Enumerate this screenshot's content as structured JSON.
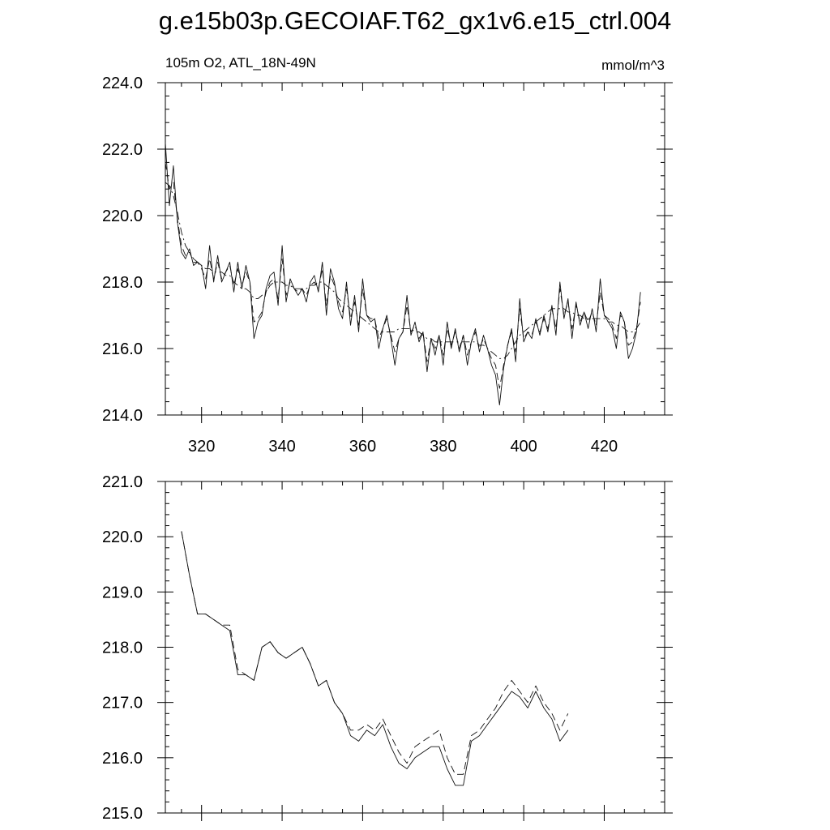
{
  "title": "g.e15b03p.GECOIAF.T62_gx1v6.e15_ctrl.004",
  "chart_data": [
    {
      "type": "line",
      "subtitle_left": "105m O2, ATL_18N-49N",
      "subtitle_right": "mmol/m^3",
      "xlim": [
        311,
        435
      ],
      "ylim": [
        214,
        224
      ],
      "xticks": [
        320,
        340,
        360,
        380,
        400,
        420
      ],
      "xtick_labels": [
        "320",
        "340",
        "360",
        "380",
        "400",
        "420"
      ],
      "yticks": [
        214,
        216,
        218,
        220,
        222,
        224
      ],
      "ytick_labels": [
        "214.0",
        "216.0",
        "218.0",
        "220.0",
        "222.0",
        "224.0"
      ],
      "x_start": 311,
      "series": [
        {
          "style": "solid",
          "values": [
            222.2,
            220.3,
            221.5,
            219.8,
            218.9,
            218.7,
            219.0,
            218.5,
            218.6,
            218.5,
            217.8,
            219.1,
            218.0,
            218.8,
            218.0,
            218.3,
            218.6,
            217.7,
            218.6,
            217.8,
            218.5,
            218.0,
            216.3,
            216.8,
            217.0,
            217.8,
            218.2,
            218.3,
            217.3,
            219.1,
            217.4,
            218.1,
            217.8,
            217.6,
            217.8,
            217.4,
            218.0,
            218.2,
            217.7,
            218.6,
            217.0,
            218.4,
            218.0,
            217.2,
            216.9,
            218.0,
            216.7,
            217.6,
            216.5,
            218.1,
            217.0,
            216.8,
            216.9,
            216.0,
            216.6,
            217.0,
            216.3,
            215.5,
            216.3,
            216.5,
            217.6,
            216.4,
            216.8,
            216.2,
            216.5,
            215.3,
            216.3,
            215.8,
            216.4,
            215.5,
            216.8,
            216.0,
            216.6,
            215.9,
            216.4,
            215.5,
            216.2,
            216.6,
            215.9,
            216.4,
            216.0,
            215.5,
            215.2,
            214.3,
            215.4,
            216.1,
            216.6,
            215.6,
            217.5,
            216.2,
            216.5,
            216.3,
            216.9,
            216.4,
            217.0,
            216.5,
            217.3,
            216.4,
            218.0,
            216.9,
            217.5,
            216.3,
            217.4,
            216.7,
            217.1,
            216.6,
            217.2,
            216.5,
            218.1,
            217.0,
            216.8,
            216.6,
            216.0,
            217.1,
            216.8,
            215.7,
            216.0,
            216.5,
            217.7
          ]
        },
        {
          "style": "dashed",
          "values": [
            221.6,
            220.8,
            221.0,
            219.9,
            219.1,
            218.8,
            218.9,
            218.6,
            218.6,
            218.4,
            218.1,
            218.7,
            218.1,
            218.6,
            218.1,
            218.3,
            218.5,
            217.9,
            218.4,
            217.9,
            218.3,
            218.0,
            216.8,
            216.9,
            217.1,
            217.7,
            218.0,
            218.1,
            217.5,
            218.7,
            217.6,
            218.0,
            217.8,
            217.7,
            217.8,
            217.6,
            217.9,
            218.0,
            217.8,
            218.4,
            217.3,
            218.2,
            217.9,
            217.4,
            217.1,
            217.8,
            216.9,
            217.4,
            216.7,
            217.8,
            217.0,
            216.9,
            216.9,
            216.3,
            216.6,
            216.9,
            216.4,
            215.9,
            216.3,
            216.5,
            217.3,
            216.5,
            216.7,
            216.3,
            216.5,
            215.6,
            216.3,
            216.0,
            216.4,
            215.8,
            216.6,
            216.1,
            216.5,
            216.0,
            216.4,
            215.8,
            216.2,
            216.5,
            216.0,
            216.3,
            216.0,
            215.7,
            215.5,
            214.8,
            215.5,
            216.1,
            216.5,
            215.9,
            217.2,
            216.3,
            216.5,
            216.4,
            216.8,
            216.5,
            216.9,
            216.6,
            217.2,
            216.6,
            217.8,
            217.0,
            217.4,
            216.6,
            217.3,
            216.8,
            217.1,
            216.8,
            217.1,
            216.7,
            217.7,
            217.0,
            216.9,
            216.7,
            216.3,
            217.0,
            216.8,
            216.1,
            216.2,
            216.6,
            217.4
          ]
        },
        {
          "style": "dashdot",
          "values": [
            221.0,
            220.9,
            220.6,
            220.1,
            219.5,
            219.1,
            218.9,
            218.7,
            218.6,
            218.5,
            218.4,
            218.4,
            218.3,
            218.3,
            218.3,
            218.2,
            218.2,
            218.0,
            217.9,
            217.8,
            217.8,
            217.7,
            217.5,
            217.5,
            217.6,
            217.7,
            217.9,
            218.0,
            218.0,
            218.0,
            217.9,
            217.9,
            217.8,
            217.8,
            217.8,
            217.8,
            217.9,
            217.9,
            218.0,
            218.0,
            217.9,
            217.8,
            217.7,
            217.5,
            217.4,
            217.3,
            217.2,
            217.1,
            217.0,
            216.9,
            216.8,
            216.7,
            216.6,
            216.5,
            216.5,
            216.5,
            216.5,
            216.5,
            216.6,
            216.6,
            216.6,
            216.6,
            216.5,
            216.5,
            216.4,
            216.3,
            216.3,
            216.2,
            216.2,
            216.2,
            216.2,
            216.2,
            216.2,
            216.2,
            216.2,
            216.2,
            216.2,
            216.2,
            216.1,
            216.1,
            216.0,
            215.9,
            215.8,
            215.7,
            215.7,
            215.8,
            216.0,
            216.2,
            216.4,
            216.5,
            216.6,
            216.7,
            216.8,
            216.9,
            217.0,
            217.1,
            217.2,
            217.2,
            217.2,
            217.2,
            217.1,
            217.1,
            217.0,
            217.0,
            216.9,
            216.9,
            216.9,
            216.9,
            216.9,
            216.9,
            216.8,
            216.8,
            216.7,
            216.7,
            216.6,
            216.5,
            216.5,
            216.6,
            216.8
          ]
        }
      ]
    },
    {
      "type": "line",
      "xlim": [
        311,
        435
      ],
      "ylim": [
        215,
        221
      ],
      "xticks": [
        320,
        340,
        360,
        380,
        400,
        420
      ],
      "yticks": [
        215,
        216,
        217,
        218,
        219,
        220,
        221
      ],
      "ytick_labels": [
        "215.0",
        "216.0",
        "217.0",
        "218.0",
        "219.0",
        "220.0",
        "221.0"
      ],
      "x_start": 315,
      "x_step": 2,
      "series": [
        {
          "style": "solid",
          "values": [
            220.1,
            219.3,
            218.6,
            218.6,
            218.5,
            218.4,
            218.3,
            217.5,
            217.5,
            217.4,
            218.0,
            218.1,
            217.9,
            217.8,
            217.9,
            218.0,
            217.7,
            217.3,
            217.4,
            217.0,
            216.8,
            216.4,
            216.3,
            216.5,
            216.4,
            216.6,
            216.2,
            215.9,
            215.8,
            216.0,
            216.1,
            216.2,
            216.2,
            215.8,
            215.5,
            215.5,
            216.3,
            216.4,
            216.6,
            216.8,
            217.0,
            217.2,
            217.1,
            216.9,
            217.2,
            216.9,
            216.7,
            216.3,
            216.5
          ]
        },
        {
          "style": "dashed",
          "values": [
            220.1,
            219.3,
            218.6,
            218.6,
            218.5,
            218.4,
            218.4,
            217.6,
            217.5,
            217.4,
            218.0,
            218.1,
            217.9,
            217.8,
            217.9,
            218.0,
            217.7,
            217.3,
            217.4,
            217.0,
            216.8,
            216.5,
            216.5,
            216.6,
            216.5,
            216.7,
            216.4,
            216.1,
            215.9,
            216.2,
            216.3,
            216.4,
            216.5,
            216.0,
            215.7,
            215.7,
            216.4,
            216.5,
            216.7,
            216.9,
            217.2,
            217.4,
            217.2,
            217.0,
            217.3,
            217.0,
            216.8,
            216.5,
            216.8
          ]
        }
      ]
    }
  ]
}
